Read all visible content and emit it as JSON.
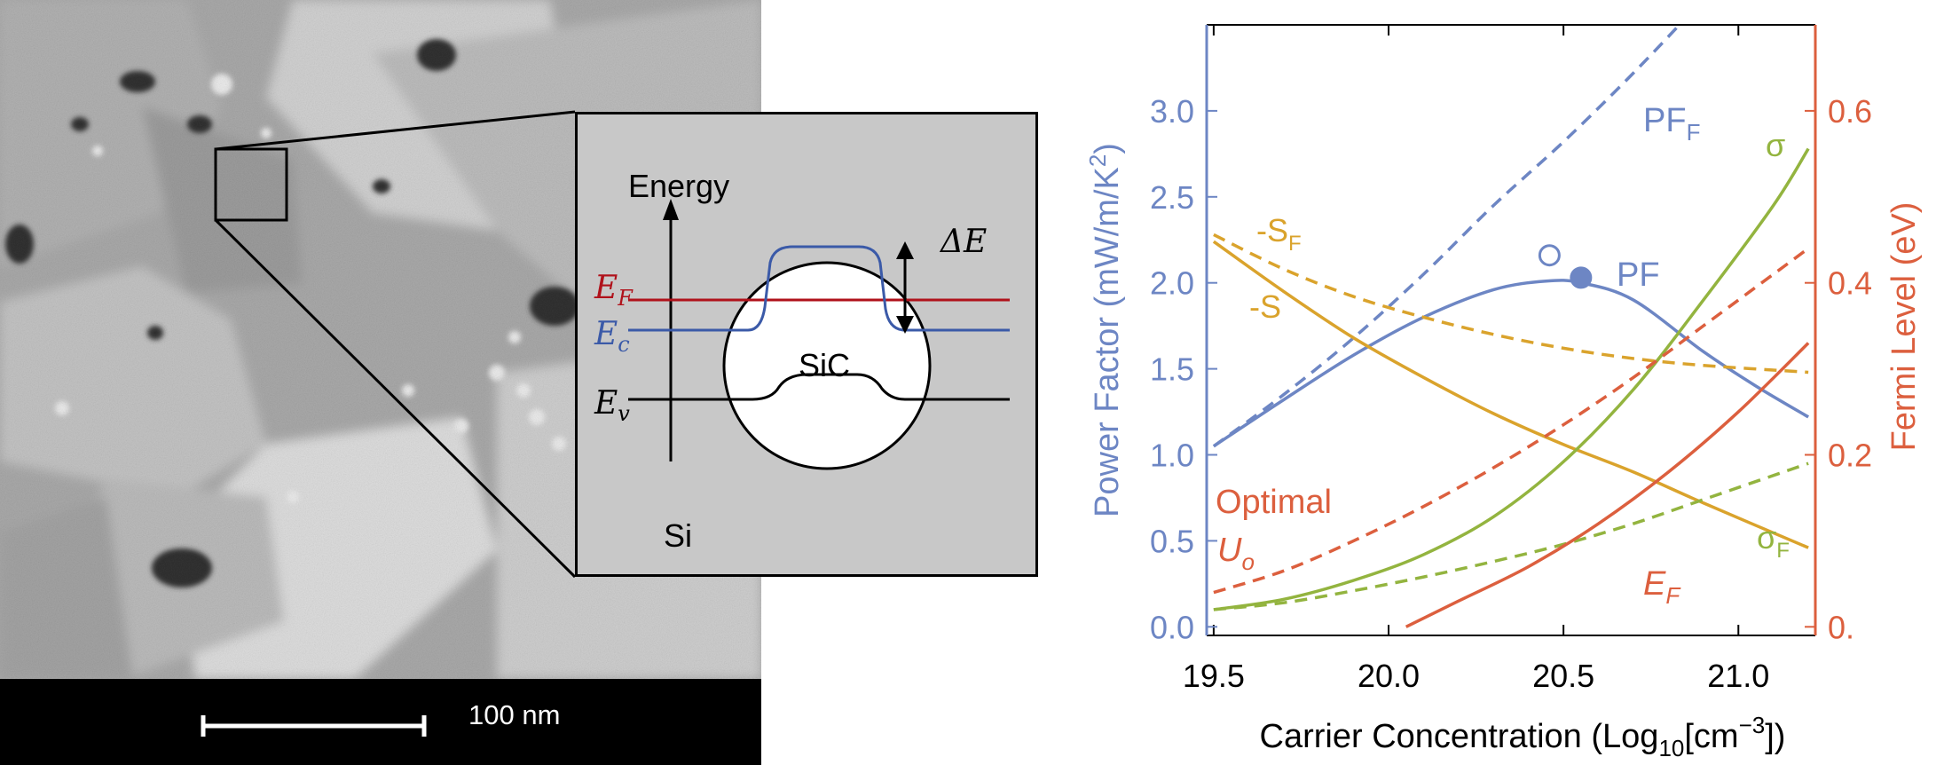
{
  "micrograph": {
    "scale_bar_label": "100 nm"
  },
  "inset": {
    "energy_label": "Energy",
    "delta_e_label": "ΔE",
    "ef_label": "E",
    "ef_sub": "F",
    "ec_label": "E",
    "ec_sub": "c",
    "ev_label": "E",
    "ev_sub": "v",
    "sic_label": "SiC",
    "si_label": "Si",
    "colors": {
      "ef": "#b0121b",
      "ec": "#3b5aa8",
      "ev": "#000000",
      "bg": "#c8c8c8"
    }
  },
  "chart_data": {
    "type": "line",
    "xlabel": "Carrier Concentration (Log",
    "xlabel_sub": "10",
    "xlabel_mid": "[cm",
    "xlabel_sup": "−3",
    "xlabel_end": "])",
    "ylabel_left": "Power Factor (mW/m/K",
    "ylabel_left_sup": "2",
    "ylabel_left_end": ")",
    "ylabel_right": "Fermi Level (eV)",
    "xlim": [
      19.48,
      21.22
    ],
    "ylim_left": [
      -0.05,
      3.5
    ],
    "ylim_right": [
      -0.01,
      0.7
    ],
    "x_ticks": [
      "19.5",
      "20.0",
      "20.5",
      "21.0"
    ],
    "y_ticks_left": [
      "0.0",
      "0.5",
      "1.0",
      "1.5",
      "2.0",
      "2.5",
      "3.0"
    ],
    "y_ticks_right": [
      "0.",
      "0.2",
      "0.4",
      "0.6"
    ],
    "colors": {
      "pf": "#6d86c4",
      "s": "#daa32c",
      "sigma": "#93b43f",
      "fermi": "#dc5f3e",
      "axis_left": "#6d86c4",
      "axis_right": "#dc5f3e"
    },
    "series": [
      {
        "name": "PF_F",
        "color": "pf",
        "dashed": true,
        "x": [
          19.5,
          19.7,
          19.9,
          20.1,
          20.3,
          20.5,
          20.7,
          20.9,
          21.1
        ],
        "y": [
          1.05,
          1.35,
          1.68,
          2.05,
          2.45,
          2.82,
          3.22,
          3.65,
          4.1
        ]
      },
      {
        "name": "PF",
        "color": "pf",
        "dashed": false,
        "x": [
          19.5,
          19.7,
          19.9,
          20.1,
          20.3,
          20.45,
          20.55,
          20.7,
          20.9,
          21.05,
          21.2
        ],
        "y": [
          1.05,
          1.32,
          1.58,
          1.8,
          1.96,
          2.01,
          2.0,
          1.9,
          1.6,
          1.4,
          1.22
        ]
      },
      {
        "name": "-S_F",
        "color": "s",
        "dashed": true,
        "x": [
          19.5,
          19.7,
          19.9,
          20.1,
          20.3,
          20.5,
          20.7,
          20.9,
          21.2
        ],
        "y": [
          2.28,
          2.08,
          1.92,
          1.8,
          1.7,
          1.62,
          1.56,
          1.52,
          1.48
        ]
      },
      {
        "name": "-S",
        "color": "s",
        "dashed": false,
        "x": [
          19.5,
          19.7,
          19.9,
          20.1,
          20.3,
          20.5,
          20.7,
          20.9,
          21.2
        ],
        "y": [
          2.24,
          1.95,
          1.68,
          1.45,
          1.24,
          1.06,
          0.9,
          0.72,
          0.46
        ]
      },
      {
        "name": "σ",
        "color": "sigma",
        "dashed": false,
        "x": [
          19.5,
          19.7,
          19.9,
          20.1,
          20.3,
          20.5,
          20.7,
          20.9,
          21.1,
          21.2
        ],
        "y": [
          0.1,
          0.16,
          0.27,
          0.42,
          0.64,
          0.96,
          1.38,
          1.9,
          2.45,
          2.78
        ]
      },
      {
        "name": "σ_F",
        "color": "sigma",
        "dashed": true,
        "x": [
          19.5,
          19.7,
          19.9,
          20.1,
          20.3,
          20.5,
          20.7,
          20.9,
          21.2
        ],
        "y": [
          0.1,
          0.14,
          0.21,
          0.29,
          0.38,
          0.48,
          0.6,
          0.74,
          0.95
        ]
      },
      {
        "name": "Optimal U_o",
        "color": "fermi",
        "dashed": true,
        "axis": "right",
        "x": [
          19.5,
          19.7,
          19.9,
          20.1,
          20.3,
          20.5,
          20.7,
          20.9,
          21.2
        ],
        "y": [
          0.04,
          0.065,
          0.1,
          0.14,
          0.185,
          0.235,
          0.29,
          0.35,
          0.44
        ]
      },
      {
        "name": "E_F",
        "color": "fermi",
        "dashed": false,
        "axis": "right",
        "x": [
          20.05,
          20.2,
          20.4,
          20.6,
          20.8,
          21.0,
          21.2
        ],
        "y": [
          0.0,
          0.03,
          0.07,
          0.12,
          0.18,
          0.25,
          0.33
        ]
      }
    ],
    "points": [
      {
        "name": "optimal PF (open)",
        "x": 20.46,
        "y": 2.16,
        "filled": false,
        "color": "pf"
      },
      {
        "name": "PF max (filled)",
        "x": 20.55,
        "y": 2.03,
        "filled": true,
        "color": "pf"
      }
    ],
    "labels": {
      "pf_f": "PF",
      "pf_f_sub": "F",
      "pf": "PF",
      "s_f": "-S",
      "s_f_sub": "F",
      "s": "-S",
      "sigma": "σ",
      "sigma_f": "σ",
      "sigma_f_sub": "F",
      "optimal": "Optimal",
      "uo": "U",
      "uo_sub": "o",
      "ef": "E",
      "ef_sub": "F"
    }
  }
}
